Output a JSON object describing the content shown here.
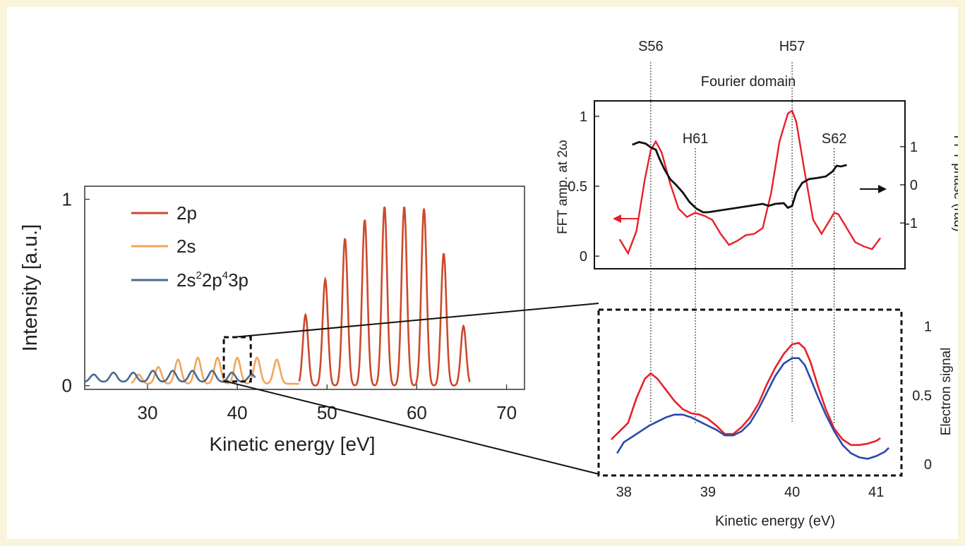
{
  "chart_data": [
    {
      "type": "line",
      "xlabel": "Kinetic energy [eV]",
      "ylabel": "Intensity [a.u.]",
      "xlim": [
        23,
        72
      ],
      "ylim": [
        -0.02,
        1.07
      ],
      "xticks": [
        "30",
        "40",
        "50",
        "60",
        "70"
      ],
      "yticks": [
        "0",
        "1"
      ],
      "legend_position": "top-left",
      "grid": false,
      "series": [
        {
          "name": "2p",
          "color": "#cc4a2c",
          "peaks": [
            {
              "x": 47.6,
              "y": 0.38
            },
            {
              "x": 49.8,
              "y": 0.57
            },
            {
              "x": 52.0,
              "y": 0.79
            },
            {
              "x": 54.2,
              "y": 0.89
            },
            {
              "x": 56.4,
              "y": 0.96
            },
            {
              "x": 58.6,
              "y": 0.96
            },
            {
              "x": 60.8,
              "y": 0.95
            },
            {
              "x": 63.0,
              "y": 0.71
            },
            {
              "x": 65.2,
              "y": 0.32
            }
          ]
        },
        {
          "name": "2s",
          "color": "#f2a65a",
          "peaks": [
            {
              "x": 29.0,
              "y": 0.05
            },
            {
              "x": 31.2,
              "y": 0.09
            },
            {
              "x": 33.4,
              "y": 0.13
            },
            {
              "x": 35.6,
              "y": 0.14
            },
            {
              "x": 37.8,
              "y": 0.14
            },
            {
              "x": 40.0,
              "y": 0.14
            },
            {
              "x": 42.2,
              "y": 0.14
            },
            {
              "x": 44.4,
              "y": 0.13
            }
          ]
        },
        {
          "name": "2s²2p⁴3p",
          "color": "#4a6a8c",
          "peaks": [
            {
              "x": 24.0,
              "y": 0.04
            },
            {
              "x": 26.2,
              "y": 0.05
            },
            {
              "x": 28.4,
              "y": 0.05
            },
            {
              "x": 30.6,
              "y": 0.06
            },
            {
              "x": 32.8,
              "y": 0.06
            },
            {
              "x": 35.0,
              "y": 0.06
            },
            {
              "x": 37.2,
              "y": 0.06
            },
            {
              "x": 39.4,
              "y": 0.05
            },
            {
              "x": 41.6,
              "y": 0.04
            }
          ]
        }
      ],
      "zoom_box_x": [
        38.5,
        41.5
      ],
      "zoom_box_y": [
        0.0,
        0.26
      ]
    },
    {
      "type": "line",
      "title": "Fourier domain",
      "ylabel": "FFT amp. at 2ω",
      "ylabel_right": "FFT phase (rad)",
      "xlim": [
        37.7,
        41.3
      ],
      "ylim": [
        -0.05,
        1.07
      ],
      "ylim_right": [
        -2.2,
        2.2
      ],
      "yticks": [
        "0",
        "0.5",
        "1"
      ],
      "yticks_right": [
        "-1",
        "0",
        "1"
      ],
      "series": [
        {
          "name": "",
          "color": "#e8202a",
          "x": [
            37.95,
            38.05,
            38.15,
            38.25,
            38.32,
            38.38,
            38.45,
            38.55,
            38.65,
            38.75,
            38.85,
            38.95,
            39.05,
            39.15,
            39.25,
            39.35,
            39.45,
            39.55,
            39.65,
            39.75,
            39.85,
            39.95,
            40.0,
            40.05,
            40.15,
            40.25,
            40.35,
            40.45,
            40.5,
            40.55,
            40.65,
            40.75,
            40.85,
            40.95,
            41.05
          ],
          "y": [
            0.12,
            0.02,
            0.18,
            0.55,
            0.76,
            0.82,
            0.74,
            0.52,
            0.34,
            0.28,
            0.31,
            0.29,
            0.26,
            0.16,
            0.08,
            0.11,
            0.15,
            0.16,
            0.2,
            0.45,
            0.82,
            1.02,
            1.04,
            0.96,
            0.6,
            0.26,
            0.16,
            0.26,
            0.31,
            0.3,
            0.2,
            0.1,
            0.07,
            0.05,
            0.13
          ]
        },
        {
          "name": "",
          "color": "#111111",
          "axis": "right",
          "x": [
            38.1,
            38.18,
            38.26,
            38.32,
            38.38,
            38.42,
            38.48,
            38.55,
            38.62,
            38.7,
            38.78,
            38.86,
            38.94,
            39.0,
            39.65,
            39.72,
            39.8,
            39.9,
            39.95,
            40.0,
            40.05,
            40.12,
            40.2,
            40.3,
            40.4,
            40.48,
            40.53,
            40.58,
            40.65
          ],
          "y": [
            1.05,
            1.12,
            1.08,
            0.98,
            0.92,
            0.7,
            0.42,
            0.15,
            0.0,
            -0.2,
            -0.45,
            -0.62,
            -0.72,
            -0.72,
            -0.5,
            -0.55,
            -0.5,
            -0.48,
            -0.6,
            -0.55,
            -0.2,
            0.05,
            0.15,
            0.18,
            0.22,
            0.35,
            0.5,
            0.48,
            0.52
          ]
        }
      ],
      "annotations": [
        "S56",
        "H57",
        "H61",
        "S62"
      ]
    },
    {
      "type": "line",
      "xlabel": "Kinetic energy (eV)",
      "ylabel": "Electron signal",
      "xlim": [
        37.7,
        41.3
      ],
      "ylim": [
        -0.05,
        1.07
      ],
      "xticks": [
        "38",
        "39",
        "40",
        "41"
      ],
      "yticks": [
        "0",
        "0.5",
        "1"
      ],
      "series": [
        {
          "name": "",
          "color": "#e8202a",
          "x": [
            37.85,
            37.95,
            38.05,
            38.15,
            38.25,
            38.32,
            38.4,
            38.5,
            38.6,
            38.7,
            38.8,
            38.9,
            39.0,
            39.1,
            39.2,
            39.3,
            39.4,
            39.5,
            39.6,
            39.7,
            39.8,
            39.9,
            40.0,
            40.08,
            40.15,
            40.22,
            40.3,
            40.4,
            40.5,
            40.6,
            40.7,
            40.8,
            40.9,
            41.0,
            41.05
          ],
          "y": [
            0.18,
            0.24,
            0.3,
            0.48,
            0.62,
            0.66,
            0.62,
            0.54,
            0.46,
            0.4,
            0.37,
            0.36,
            0.33,
            0.28,
            0.22,
            0.22,
            0.27,
            0.34,
            0.44,
            0.58,
            0.7,
            0.8,
            0.87,
            0.88,
            0.84,
            0.74,
            0.58,
            0.4,
            0.26,
            0.18,
            0.14,
            0.14,
            0.15,
            0.17,
            0.19
          ]
        },
        {
          "name": "",
          "color": "#2a4aa8",
          "x": [
            37.92,
            38.0,
            38.1,
            38.2,
            38.3,
            38.4,
            38.5,
            38.6,
            38.7,
            38.8,
            38.9,
            39.0,
            39.1,
            39.2,
            39.3,
            39.4,
            39.5,
            39.6,
            39.7,
            39.8,
            39.9,
            40.0,
            40.08,
            40.15,
            40.22,
            40.3,
            40.4,
            40.5,
            40.6,
            40.7,
            40.8,
            40.9,
            41.0,
            41.1,
            41.15
          ],
          "y": [
            0.08,
            0.16,
            0.2,
            0.24,
            0.28,
            0.31,
            0.34,
            0.36,
            0.36,
            0.34,
            0.31,
            0.28,
            0.25,
            0.21,
            0.21,
            0.24,
            0.3,
            0.4,
            0.52,
            0.64,
            0.73,
            0.77,
            0.77,
            0.72,
            0.62,
            0.5,
            0.36,
            0.24,
            0.14,
            0.08,
            0.05,
            0.04,
            0.06,
            0.09,
            0.12
          ]
        }
      ]
    }
  ]
}
